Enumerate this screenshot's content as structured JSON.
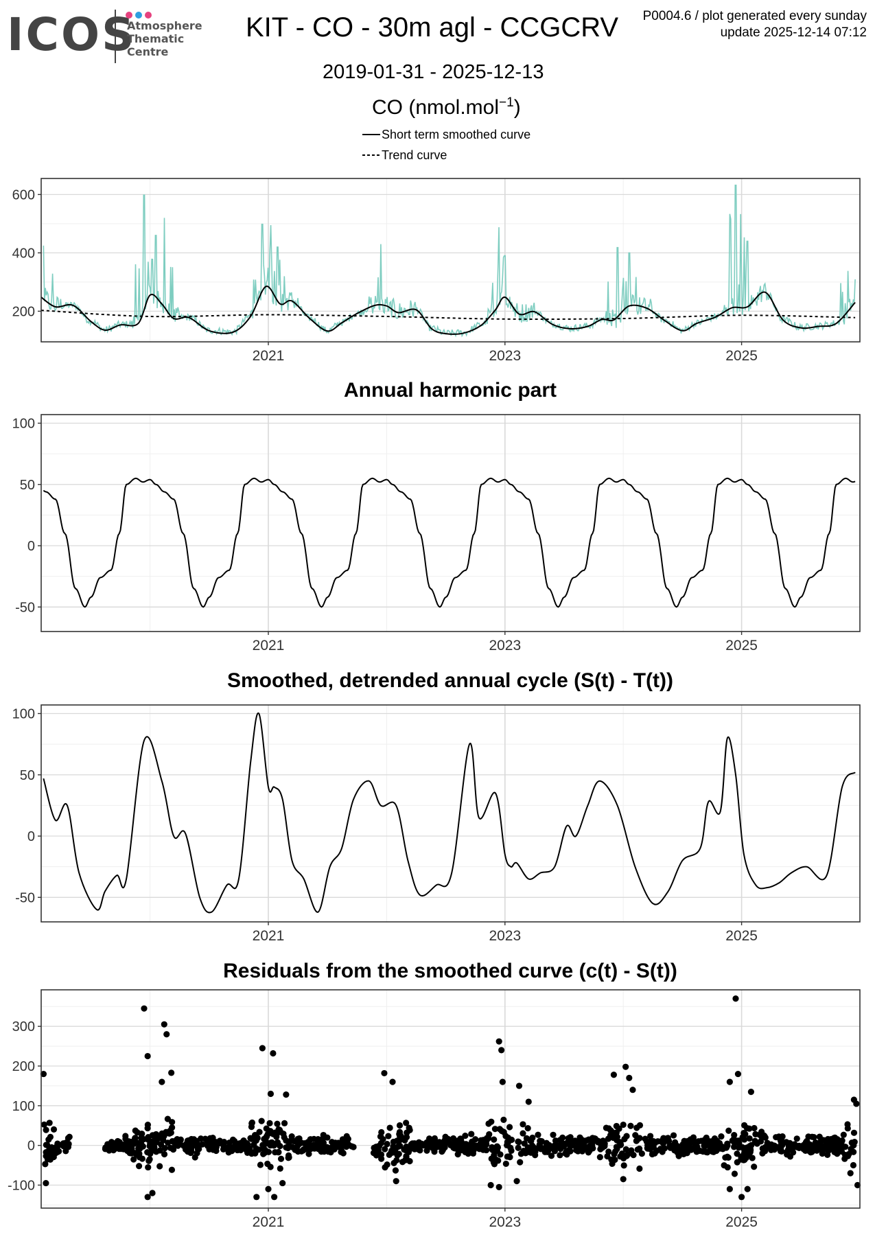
{
  "header": {
    "logo_text": "ICOS",
    "logo_subtitle": [
      "Atmosphere",
      "Thematic",
      "Centre"
    ],
    "logo_dot_colors": [
      "#e6427f",
      "#2f9fe0",
      "#e6427f"
    ],
    "title": "KIT - CO - 30m agl - CCGCRV",
    "code_line": "P0004.6 / plot generated every sunday",
    "update_line": "update  2025-12-14 07:12",
    "date_range": "2019-01-31 - 2025-12-13",
    "units_base": "CO (nmol.mol",
    "units_exp": "−1",
    "units_close": ")"
  },
  "legend": {
    "items": [
      {
        "label": "Short term smoothed curve",
        "style": "solid"
      },
      {
        "label": "Trend curve",
        "style": "dashed"
      }
    ]
  },
  "colors": {
    "raw": "#7ecdc0",
    "line": "#000000",
    "grid_major": "#d9d9d9",
    "grid_minor": "#efefef"
  },
  "chart_data": [
    {
      "id": "co",
      "type": "line",
      "title": "",
      "xlabel": "",
      "ylabel": "CO (nmol.mol-1)",
      "xlim": [
        2019.08,
        2026.0
      ],
      "ylim": [
        95,
        655
      ],
      "x_ticks": [
        2021,
        2023,
        2025
      ],
      "x_tick_labels": [
        "2021",
        "2023",
        "2025"
      ],
      "y_ticks": [
        200,
        400,
        600
      ],
      "y_tick_labels": [
        "200",
        "400",
        "600"
      ],
      "series": [
        {
          "name": "Trend curve",
          "style": "dashed",
          "x": [
            2019.08,
            2020.0,
            2021.0,
            2022.0,
            2023.0,
            2024.0,
            2025.0,
            2025.96
          ],
          "y": [
            203,
            182,
            188,
            182,
            173,
            175,
            186,
            178
          ]
        },
        {
          "name": "Short term smoothed curve",
          "style": "solid",
          "x": [
            2019.08,
            2019.2,
            2019.35,
            2019.5,
            2019.62,
            2019.75,
            2019.9,
            2020.0,
            2020.1,
            2020.2,
            2020.33,
            2020.5,
            2020.7,
            2020.85,
            2020.98,
            2021.1,
            2021.2,
            2021.35,
            2021.5,
            2021.62,
            2021.75,
            2021.9,
            2022.0,
            2022.1,
            2022.25,
            2022.38,
            2022.5,
            2022.65,
            2022.8,
            2022.92,
            2023.0,
            2023.12,
            2023.25,
            2023.4,
            2023.55,
            2023.7,
            2023.82,
            2023.92,
            2024.05,
            2024.2,
            2024.35,
            2024.5,
            2024.62,
            2024.78,
            2024.92,
            2025.05,
            2025.2,
            2025.35,
            2025.5,
            2025.65,
            2025.8,
            2025.96
          ],
          "y": [
            248,
            215,
            220,
            165,
            135,
            153,
            158,
            255,
            225,
            175,
            178,
            133,
            128,
            182,
            285,
            225,
            235,
            175,
            132,
            160,
            192,
            220,
            218,
            195,
            205,
            140,
            123,
            125,
            152,
            205,
            248,
            190,
            198,
            155,
            140,
            148,
            172,
            170,
            218,
            210,
            168,
            133,
            158,
            180,
            212,
            215,
            265,
            170,
            143,
            148,
            158,
            230
          ]
        },
        {
          "name": "Raw data",
          "style": "raw",
          "peaks": [
            [
              2019.1,
              425
            ],
            [
              2019.95,
              598
            ],
            [
              2020.05,
              460
            ],
            [
              2020.12,
              520
            ],
            [
              2020.95,
              498
            ],
            [
              2021.02,
              495
            ],
            [
              2021.08,
              420
            ],
            [
              2021.95,
              430
            ],
            [
              2022.95,
              488
            ],
            [
              2023.0,
              390
            ],
            [
              2023.95,
              418
            ],
            [
              2024.05,
              400
            ],
            [
              2024.95,
              632
            ],
            [
              2025.05,
              440
            ],
            [
              2025.9,
              338
            ]
          ]
        }
      ]
    },
    {
      "id": "harmonic",
      "type": "line",
      "title": "Annual harmonic part",
      "xlabel": "",
      "ylabel": "",
      "xlim": [
        2019.08,
        2026.0
      ],
      "ylim": [
        -70,
        107
      ],
      "x_ticks": [
        2021,
        2023,
        2025
      ],
      "x_tick_labels": [
        "2021",
        "2023",
        "2025"
      ],
      "y_ticks": [
        -50,
        0,
        50,
        100
      ],
      "y_tick_labels": [
        "-50",
        "0",
        "50",
        "100"
      ],
      "series": [
        {
          "name": "Annual harmonic",
          "annual_profile": {
            "phase": [
              0.0,
              0.05,
              0.12,
              0.2,
              0.28,
              0.37,
              0.45,
              0.5,
              0.58,
              0.67,
              0.74,
              0.8,
              0.88,
              0.94,
              1.0
            ],
            "value": [
              54,
              50,
              44,
              38,
              10,
              -35,
              -50,
              -42,
              -26,
              -20,
              10,
              50,
              55,
              52,
              54
            ]
          },
          "x_start": 2019.1,
          "x_end": 2025.96
        }
      ]
    },
    {
      "id": "detrended",
      "type": "line",
      "title": "Smoothed, detrended annual cycle (S(t) - T(t))",
      "xlabel": "",
      "ylabel": "",
      "xlim": [
        2019.08,
        2026.0
      ],
      "ylim": [
        -70,
        107
      ],
      "x_ticks": [
        2021,
        2023,
        2025
      ],
      "x_tick_labels": [
        "2021",
        "2023",
        "2025"
      ],
      "y_ticks": [
        -50,
        0,
        50,
        100
      ],
      "y_tick_labels": [
        "-50",
        "0",
        "50",
        "100"
      ],
      "series": [
        {
          "name": "S(t) - T(t)",
          "x": [
            2019.1,
            2019.2,
            2019.3,
            2019.4,
            2019.55,
            2019.62,
            2019.72,
            2019.8,
            2019.95,
            2020.1,
            2020.2,
            2020.3,
            2020.42,
            2020.52,
            2020.65,
            2020.75,
            2020.85,
            2020.92,
            2021.0,
            2021.05,
            2021.12,
            2021.2,
            2021.3,
            2021.42,
            2021.52,
            2021.62,
            2021.72,
            2021.85,
            2021.95,
            2022.08,
            2022.18,
            2022.28,
            2022.42,
            2022.55,
            2022.7,
            2022.78,
            2022.92,
            2023.0,
            2023.05,
            2023.1,
            2023.2,
            2023.3,
            2023.42,
            2023.52,
            2023.6,
            2023.7,
            2023.8,
            2023.95,
            2024.1,
            2024.25,
            2024.38,
            2024.5,
            2024.65,
            2024.72,
            2024.82,
            2024.88,
            2024.95,
            2025.02,
            2025.12,
            2025.22,
            2025.32,
            2025.42,
            2025.55,
            2025.72,
            2025.85,
            2025.96
          ],
          "y": [
            47,
            13,
            25,
            -30,
            -60,
            -45,
            -32,
            -35,
            78,
            45,
            0,
            2,
            -50,
            -62,
            -40,
            -35,
            60,
            100,
            40,
            40,
            30,
            -20,
            -35,
            -62,
            -25,
            -10,
            30,
            45,
            25,
            25,
            -20,
            -48,
            -40,
            -30,
            75,
            15,
            35,
            -15,
            -25,
            -22,
            -35,
            -30,
            -25,
            8,
            0,
            25,
            45,
            25,
            -25,
            -55,
            -45,
            -20,
            -10,
            28,
            20,
            80,
            50,
            -15,
            -40,
            -42,
            -38,
            -30,
            -25,
            -32,
            40,
            52
          ]
        }
      ]
    },
    {
      "id": "residuals",
      "type": "scatter",
      "title": "Residuals from the smoothed curve (c(t) - S(t))",
      "xlabel": "",
      "ylabel": "",
      "xlim": [
        2019.08,
        2026.0
      ],
      "ylim": [
        -158,
        392
      ],
      "x_ticks": [
        2021,
        2023,
        2025
      ],
      "x_tick_labels": [
        "2021",
        "2023",
        "2025"
      ],
      "y_ticks": [
        -100,
        0,
        100,
        200,
        300
      ],
      "y_tick_labels": [
        "-100",
        "0",
        "100",
        "200",
        "300"
      ],
      "series": [
        {
          "name": "Residuals",
          "gaps": [
            [
              2019.32,
              2019.62
            ],
            [
              2021.72,
              2021.88
            ]
          ],
          "outliers": [
            [
              2019.1,
              180
            ],
            [
              2019.95,
              345
            ],
            [
              2019.98,
              225
            ],
            [
              2020.12,
              305
            ],
            [
              2020.14,
              280
            ],
            [
              2020.18,
              183
            ],
            [
              2020.1,
              160
            ],
            [
              2020.95,
              245
            ],
            [
              2021.04,
              232
            ],
            [
              2021.02,
              130
            ],
            [
              2021.15,
              128
            ],
            [
              2021.98,
              182
            ],
            [
              2022.05,
              160
            ],
            [
              2022.95,
              262
            ],
            [
              2022.97,
              240
            ],
            [
              2022.98,
              160
            ],
            [
              2023.12,
              150
            ],
            [
              2023.2,
              110
            ],
            [
              2023.92,
              178
            ],
            [
              2024.02,
              198
            ],
            [
              2024.05,
              170
            ],
            [
              2024.08,
              140
            ],
            [
              2024.95,
              370
            ],
            [
              2024.97,
              180
            ],
            [
              2024.9,
              160
            ],
            [
              2025.08,
              135
            ],
            [
              2025.95,
              115
            ],
            [
              2025.97,
              105
            ],
            [
              2025.98,
              -100
            ],
            [
              2019.12,
              -95
            ],
            [
              2019.98,
              -130
            ],
            [
              2020.02,
              -120
            ],
            [
              2020.9,
              -130
            ],
            [
              2021.0,
              -110
            ],
            [
              2021.05,
              -130
            ],
            [
              2021.12,
              -95
            ],
            [
              2022.08,
              -90
            ],
            [
              2022.88,
              -100
            ],
            [
              2022.95,
              -105
            ],
            [
              2023.1,
              -90
            ],
            [
              2024.0,
              -85
            ],
            [
              2024.9,
              -110
            ],
            [
              2025.0,
              -130
            ],
            [
              2025.05,
              -110
            ],
            [
              2025.92,
              -70
            ]
          ]
        }
      ]
    }
  ]
}
